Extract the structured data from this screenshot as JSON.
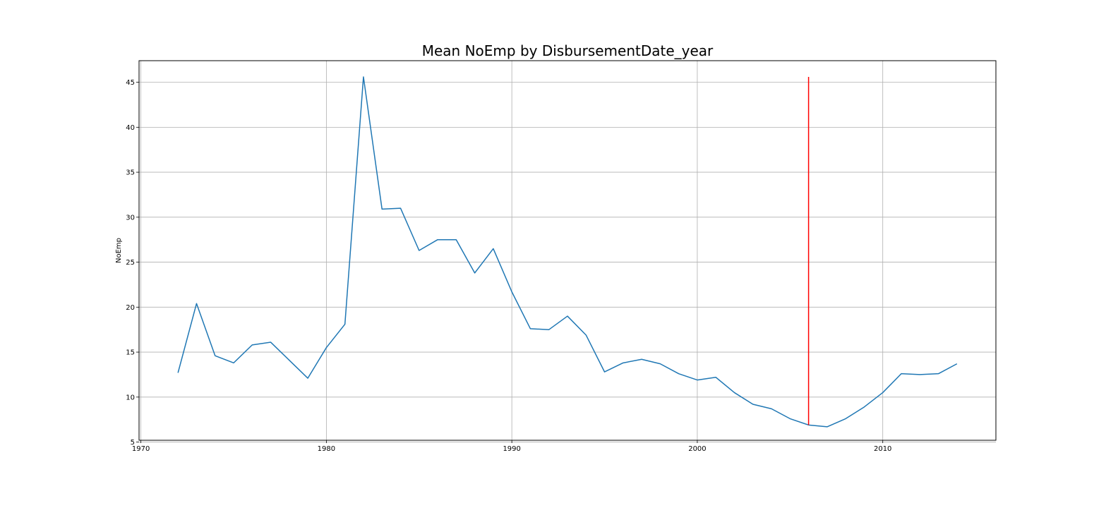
{
  "chart_data": {
    "type": "line",
    "title": "Mean NoEmp by DisbursementDate_year",
    "xlabel": "",
    "ylabel": "NoEmp",
    "xlim": [
      1969.9,
      2016.1
    ],
    "ylim": [
      5.2,
      47.4
    ],
    "x_ticks": [
      1970,
      1980,
      1990,
      2000,
      2010
    ],
    "y_ticks": [
      5,
      10,
      15,
      20,
      25,
      30,
      35,
      40,
      45
    ],
    "grid": true,
    "series": [
      {
        "color": "#1f77b4",
        "x": [
          1972,
          1973,
          1974,
          1975,
          1976,
          1977,
          1978,
          1979,
          1980,
          1981,
          1982,
          1983,
          1984,
          1985,
          1986,
          1987,
          1988,
          1989,
          1990,
          1991,
          1992,
          1993,
          1994,
          1995,
          1996,
          1997,
          1998,
          1999,
          2000,
          2001,
          2002,
          2003,
          2004,
          2005,
          2006,
          2007,
          2008,
          2009,
          2010,
          2011,
          2012,
          2013,
          2014
        ],
        "y": [
          12.7,
          20.4,
          14.6,
          13.8,
          15.8,
          16.1,
          14.1,
          12.1,
          15.5,
          18.1,
          45.6,
          30.9,
          31.0,
          26.3,
          27.5,
          27.5,
          23.8,
          26.5,
          21.7,
          17.6,
          17.5,
          19.0,
          16.9,
          12.8,
          13.8,
          14.2,
          13.7,
          12.6,
          11.9,
          12.2,
          10.5,
          9.2,
          8.7,
          7.6,
          6.9,
          6.7,
          7.6,
          8.9,
          10.5,
          12.6,
          12.5,
          12.6,
          13.7
        ]
      }
    ],
    "vline": {
      "x": 2006,
      "y_min": 6.9,
      "y_max": 45.6,
      "color": "#ff0000"
    }
  }
}
